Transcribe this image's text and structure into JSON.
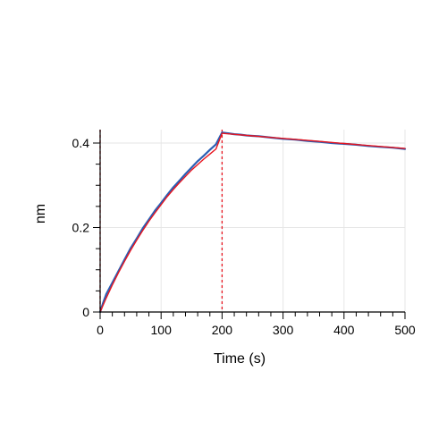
{
  "chart_data": {
    "type": "line",
    "title": "",
    "xlabel": "Time (s)",
    "ylabel": "nm",
    "xlim": [
      0,
      500
    ],
    "ylim": [
      0,
      0.42
    ],
    "x_ticks": [
      0,
      100,
      200,
      300,
      400,
      500
    ],
    "x_tick_labels": [
      "0",
      "100",
      "200",
      "300",
      "400",
      "500"
    ],
    "y_ticks": [
      0,
      0.2,
      0.4
    ],
    "y_tick_labels": [
      "0",
      "0.2",
      "0.4"
    ],
    "grid": true,
    "legend": "none",
    "series": [
      {
        "role": "measured",
        "color": "#2b5fb4",
        "x": [
          0,
          5,
          10,
          20,
          30,
          40,
          50,
          60,
          70,
          80,
          90,
          100,
          110,
          120,
          130,
          140,
          150,
          160,
          170,
          180,
          190,
          200,
          210,
          220,
          230,
          240,
          250,
          260,
          280,
          300,
          320,
          340,
          360,
          380,
          400,
          420,
          440,
          460,
          480,
          500
        ],
        "y": [
          0.0,
          0.022,
          0.042,
          0.069,
          0.097,
          0.124,
          0.151,
          0.174,
          0.198,
          0.219,
          0.24,
          0.258,
          0.277,
          0.295,
          0.311,
          0.327,
          0.342,
          0.357,
          0.37,
          0.384,
          0.397,
          0.425,
          0.423,
          0.421,
          0.42,
          0.418,
          0.417,
          0.416,
          0.413,
          0.41,
          0.408,
          0.405,
          0.403,
          0.4,
          0.398,
          0.396,
          0.393,
          0.391,
          0.389,
          0.386
        ]
      },
      {
        "role": "fit",
        "color": "#e8141e",
        "x": [
          0,
          10,
          20,
          30,
          40,
          50,
          60,
          70,
          80,
          90,
          100,
          110,
          120,
          130,
          140,
          150,
          160,
          170,
          180,
          190,
          200,
          225,
          250,
          275,
          300,
          325,
          350,
          375,
          400,
          425,
          450,
          475,
          500
        ],
        "y": [
          0.0,
          0.033,
          0.064,
          0.093,
          0.12,
          0.146,
          0.17,
          0.193,
          0.215,
          0.235,
          0.254,
          0.273,
          0.29,
          0.306,
          0.321,
          0.336,
          0.349,
          0.362,
          0.374,
          0.386,
          0.423,
          0.42,
          0.417,
          0.414,
          0.411,
          0.408,
          0.405,
          0.402,
          0.399,
          0.396,
          0.393,
          0.39,
          0.387
        ]
      }
    ],
    "vertical_markers": [
      {
        "x": 0,
        "color": "#e8141e",
        "style": "dashed"
      },
      {
        "x": 200,
        "color": "#e8141e",
        "style": "dashed"
      }
    ]
  }
}
